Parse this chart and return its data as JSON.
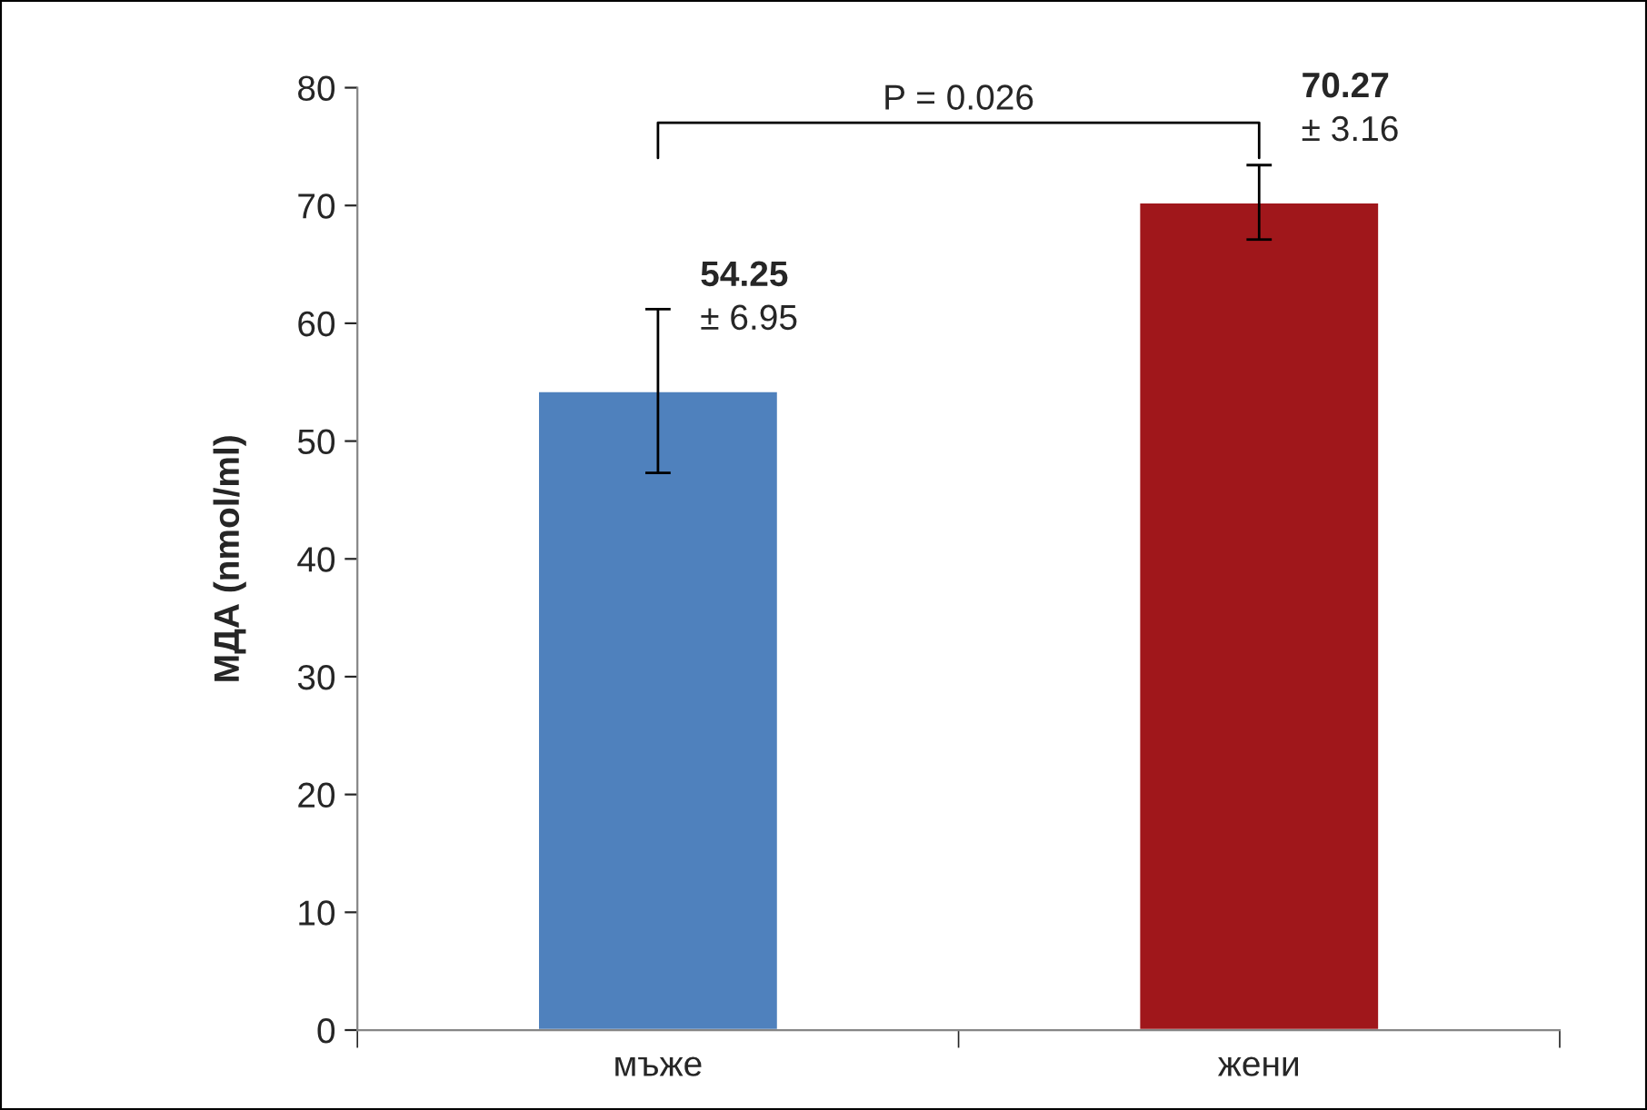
{
  "chart_data": {
    "type": "bar",
    "ylabel": "МДА (nmol/ml)",
    "categories": [
      "мъже",
      "жени"
    ],
    "values": [
      54.25,
      70.27
    ],
    "errors": [
      6.95,
      3.16
    ],
    "colors": [
      "#4f81bd",
      "#a0171b"
    ],
    "value_labels": [
      "54.25\n± 6.95",
      "70.27\n± 3.16"
    ],
    "annotations": [
      "P = 0.026"
    ],
    "ylim": [
      0,
      80
    ],
    "yticks": [
      0,
      10,
      20,
      30,
      40,
      50,
      60,
      70,
      80
    ],
    "grid": false,
    "legend": false
  }
}
